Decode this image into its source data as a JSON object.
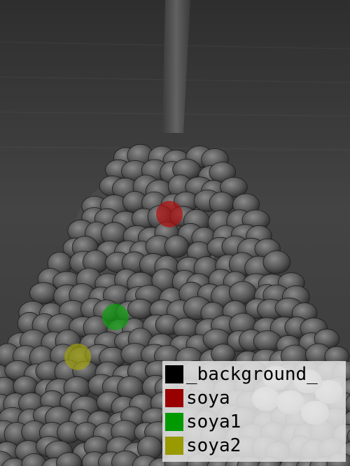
{
  "image": {
    "subject": "soybeans-on-wooden-spoon",
    "style": "grayscale-photo"
  },
  "annotations": [
    {
      "label": "soya",
      "color": "#b01010"
    },
    {
      "label": "soya1",
      "color": "#10a010"
    },
    {
      "label": "soya2",
      "color": "#a0a010"
    }
  ],
  "legend": {
    "entries": [
      {
        "label": "_background_",
        "color": "#000000"
      },
      {
        "label": "soya",
        "color": "#990000"
      },
      {
        "label": "soya1",
        "color": "#009900"
      },
      {
        "label": "soya2",
        "color": "#999900"
      }
    ]
  }
}
